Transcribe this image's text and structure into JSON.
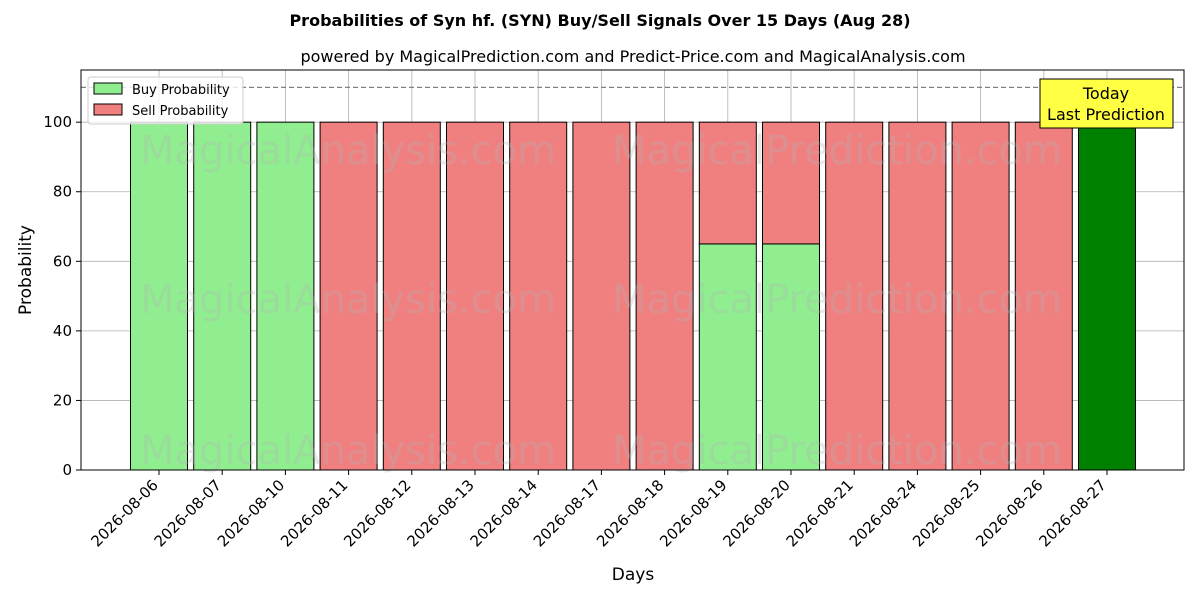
{
  "chart_data": {
    "type": "bar",
    "stacked": true,
    "title": "Probabilities of Syn hf. (SYN) Buy/Sell Signals Over 15 Days (Aug 28)",
    "subtitle": "powered by MagicalPrediction.com and Predict-Price.com and MagicalAnalysis.com",
    "xlabel": "Days",
    "ylabel": "Probability",
    "ylim": [
      0,
      115
    ],
    "yticks": [
      0,
      20,
      40,
      60,
      80,
      100
    ],
    "grid": true,
    "legend_position": "top-left",
    "reference_line": 110,
    "categories": [
      "2026-08-06",
      "2026-08-07",
      "2026-08-10",
      "2026-08-11",
      "2026-08-12",
      "2026-08-13",
      "2026-08-14",
      "2026-08-17",
      "2026-08-18",
      "2026-08-19",
      "2026-08-20",
      "2026-08-21",
      "2026-08-24",
      "2026-08-25",
      "2026-08-26",
      "2026-08-27"
    ],
    "series": [
      {
        "name": "Buy Probability",
        "color": "#90ee90",
        "values": [
          100,
          100,
          100,
          0,
          0,
          0,
          0,
          0,
          0,
          65,
          65,
          0,
          0,
          0,
          0,
          100
        ]
      },
      {
        "name": "Sell Probability",
        "color": "#f08080",
        "values": [
          0,
          0,
          0,
          100,
          100,
          100,
          100,
          100,
          100,
          35,
          35,
          100,
          100,
          100,
          100,
          0
        ]
      }
    ],
    "highlight": {
      "index": 15,
      "color": "#008000"
    },
    "annotation": {
      "lines": [
        "Today",
        "Last Prediction"
      ],
      "color": "#ffff44"
    },
    "watermarks": [
      "MagicalAnalysis.com",
      "MagicalPrediction.com"
    ]
  }
}
